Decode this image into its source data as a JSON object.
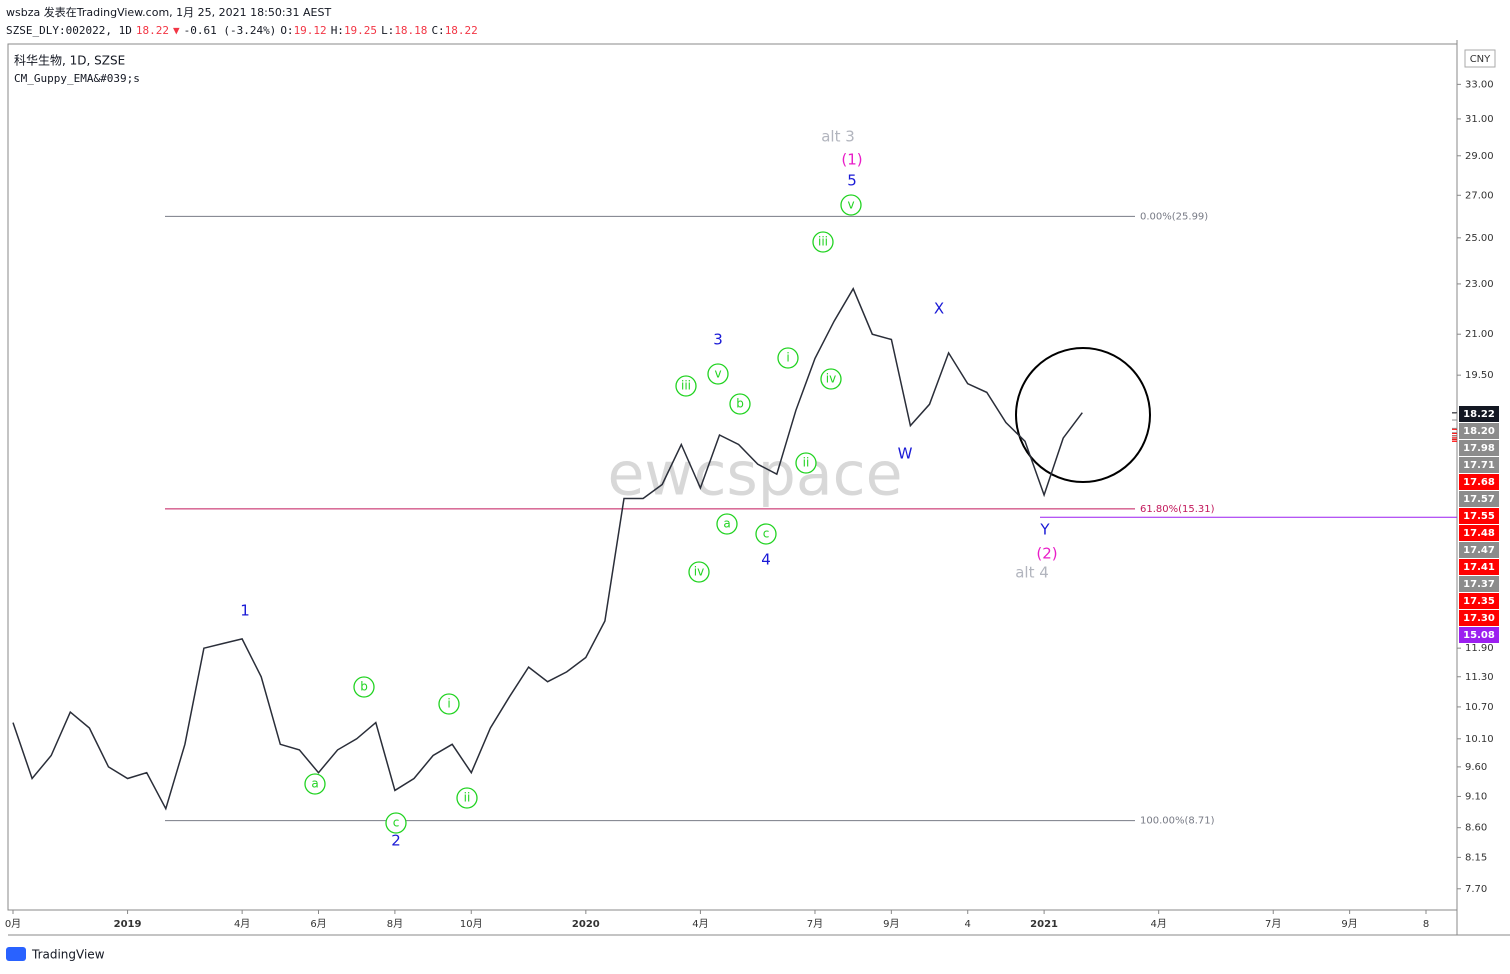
{
  "header": {
    "byline": "wsbza 发表在TradingView.com, 1月 25, 2021 18:50:31 AEST",
    "symbol_line": [
      {
        "text": "SZSE_DLY:002022, 1D",
        "color": "#131722"
      },
      {
        "text": "18.22",
        "color": "#f23645"
      },
      {
        "text": "▼",
        "color": "#f23645"
      },
      {
        "text": "-0.61 (-3.24%)",
        "color": "#131722"
      },
      {
        "text": "O:",
        "color": "#131722"
      },
      {
        "text": "19.12",
        "color": "#f23645"
      },
      {
        "text": "H:",
        "color": "#131722"
      },
      {
        "text": "19.25",
        "color": "#f23645"
      },
      {
        "text": "L:",
        "color": "#131722"
      },
      {
        "text": "18.18",
        "color": "#f23645"
      },
      {
        "text": "C:",
        "color": "#131722"
      },
      {
        "text": "18.22",
        "color": "#f23645"
      }
    ],
    "instrument": "科华生物, 1D, SZSE",
    "indicator": "CM_Guppy_EMA&#039;s",
    "currency": "CNY",
    "watermark": "ewcspace",
    "footer": "TradingView"
  },
  "chart_data": {
    "type": "line",
    "color": "#2a2e39",
    "log_scale": true,
    "categories": [
      "0月",
      null,
      null,
      null,
      null,
      null,
      "2019",
      null,
      null,
      null,
      null,
      null,
      "4月",
      null,
      null,
      null,
      "6月",
      null,
      null,
      null,
      "8月",
      null,
      null,
      null,
      "10月",
      null,
      null,
      null,
      null,
      null,
      "2020",
      null,
      null,
      null,
      null,
      null,
      "4月",
      null,
      null,
      null,
      null,
      null,
      "7月",
      null,
      null,
      null,
      "9月",
      null,
      null,
      null,
      "4",
      null,
      null,
      null,
      "2021",
      null,
      null,
      null,
      null,
      null,
      "4月",
      null,
      null,
      null,
      null,
      null,
      "7月",
      null,
      null,
      null,
      "9月",
      null,
      null,
      null,
      "8",
      null
    ],
    "values": [
      10.4,
      9.4,
      9.8,
      10.6,
      10.3,
      9.6,
      9.4,
      9.5,
      8.9,
      10.0,
      11.9,
      12.0,
      12.1,
      11.3,
      10.0,
      9.9,
      9.5,
      9.9,
      10.1,
      10.4,
      9.2,
      9.4,
      9.8,
      10.0,
      9.5,
      10.3,
      10.9,
      11.5,
      11.2,
      11.4,
      11.7,
      12.5,
      15.6,
      15.6,
      16.0,
      17.2,
      15.9,
      17.5,
      17.2,
      16.6,
      16.3,
      18.3,
      20.1,
      21.5,
      22.8,
      21.0,
      20.8,
      17.8,
      18.5,
      20.3,
      19.2,
      18.9,
      17.9,
      17.3,
      15.7,
      17.4,
      18.22,
      null,
      null,
      null,
      null,
      null,
      null,
      null,
      null,
      null,
      null,
      null,
      null,
      null,
      null,
      null,
      null,
      null,
      null,
      null
    ],
    "ylim": [
      7.41,
      35.5
    ],
    "yticks": [
      {
        "value": 7.7,
        "label": "7.70"
      },
      {
        "value": 8.15,
        "label": "8.15"
      },
      {
        "value": 8.6,
        "label": "8.60"
      },
      {
        "value": 9.1,
        "label": "9.10"
      },
      {
        "value": 9.6,
        "label": "9.60"
      },
      {
        "value": 10.1,
        "label": "10.10"
      },
      {
        "value": 10.7,
        "label": "10.70"
      },
      {
        "value": 11.3,
        "label": "11.30"
      },
      {
        "value": 11.9,
        "label": "11.90"
      },
      {
        "value": 19.5,
        "label": "19.50"
      },
      {
        "value": 21,
        "label": "21.00"
      },
      {
        "value": 23,
        "label": "23.00"
      },
      {
        "value": 25,
        "label": "25.00"
      },
      {
        "value": 27,
        "label": "27.00"
      },
      {
        "value": 29,
        "label": "29.00"
      },
      {
        "value": 31,
        "label": "31.00"
      },
      {
        "value": 33,
        "label": "33.00"
      }
    ],
    "fib_levels": [
      {
        "value": 25.99,
        "label": "0.00%(25.99)"
      },
      {
        "value": 15.31,
        "label": "61.80%(15.31)"
      },
      {
        "value": 8.71,
        "label": "100.00%(8.71)"
      }
    ],
    "price_labels": [
      {
        "value": 18.22,
        "label": "18.22",
        "color": "#131722"
      },
      {
        "value": 18.2,
        "label": "18.20",
        "color": "#8c8c8c"
      },
      {
        "value": 17.98,
        "label": "17.98",
        "color": "#8c8c8c"
      },
      {
        "value": 17.71,
        "label": "17.71",
        "color": "#8c8c8c"
      },
      {
        "value": 17.68,
        "label": "17.68",
        "color": "#ff0000"
      },
      {
        "value": 17.57,
        "label": "17.57",
        "color": "#8c8c8c"
      },
      {
        "value": 17.55,
        "label": "17.55",
        "color": "#ff0000"
      },
      {
        "value": 17.48,
        "label": "17.48",
        "color": "#ff0000"
      },
      {
        "value": 17.47,
        "label": "17.47",
        "color": "#8c8c8c"
      },
      {
        "value": 17.41,
        "label": "17.41",
        "color": "#ff0000"
      },
      {
        "value": 17.37,
        "label": "17.37",
        "color": "#8c8c8c"
      },
      {
        "value": 17.35,
        "label": "17.35",
        "color": "#ff0000"
      },
      {
        "value": 17.3,
        "label": "17.30",
        "color": "#ff0000"
      },
      {
        "value": 15.08,
        "label": "15.08",
        "color": "#9c1ff0"
      }
    ],
    "annotations": [
      {
        "text": "alt 3",
        "color": "#b2b5be"
      },
      {
        "text": "(1)",
        "color": "#e91ec8"
      },
      {
        "text": "5",
        "color": "#1a1ad6"
      },
      {
        "text": "v",
        "color": "#22d322",
        "circled": true
      },
      {
        "text": "iii",
        "color": "#22d322",
        "circled": true
      },
      {
        "text": "i",
        "color": "#22d322",
        "circled": true
      },
      {
        "text": "iv",
        "color": "#22d322",
        "circled": true
      },
      {
        "text": "ii",
        "color": "#22d322",
        "circled": true
      },
      {
        "text": "3",
        "color": "#1a1ad6"
      },
      {
        "text": "v",
        "color": "#22d322",
        "circled": true
      },
      {
        "text": "iii",
        "color": "#22d322",
        "circled": true
      },
      {
        "text": "b",
        "color": "#22d322",
        "circled": true
      },
      {
        "text": "a",
        "color": "#22d322",
        "circled": true
      },
      {
        "text": "c",
        "color": "#22d322",
        "circled": true
      },
      {
        "text": "iv",
        "color": "#22d322",
        "circled": true
      },
      {
        "text": "4",
        "color": "#1a1ad6"
      },
      {
        "text": "X",
        "color": "#1a1ad6"
      },
      {
        "text": "W",
        "color": "#1a1ad6"
      },
      {
        "text": "Y",
        "color": "#1a1ad6"
      },
      {
        "text": "(2)",
        "color": "#e91ec8"
      },
      {
        "text": "alt 4",
        "color": "#b2b5be"
      },
      {
        "text": "1",
        "color": "#1a1ad6"
      },
      {
        "text": "b",
        "color": "#22d322",
        "circled": true
      },
      {
        "text": "i",
        "color": "#22d322",
        "circled": true
      },
      {
        "text": "a",
        "color": "#22d322",
        "circled": true
      },
      {
        "text": "ii",
        "color": "#22d322",
        "circled": true
      },
      {
        "text": "c",
        "color": "#22d322",
        "circled": true
      },
      {
        "text": "2",
        "color": "#1a1ad6"
      }
    ]
  }
}
